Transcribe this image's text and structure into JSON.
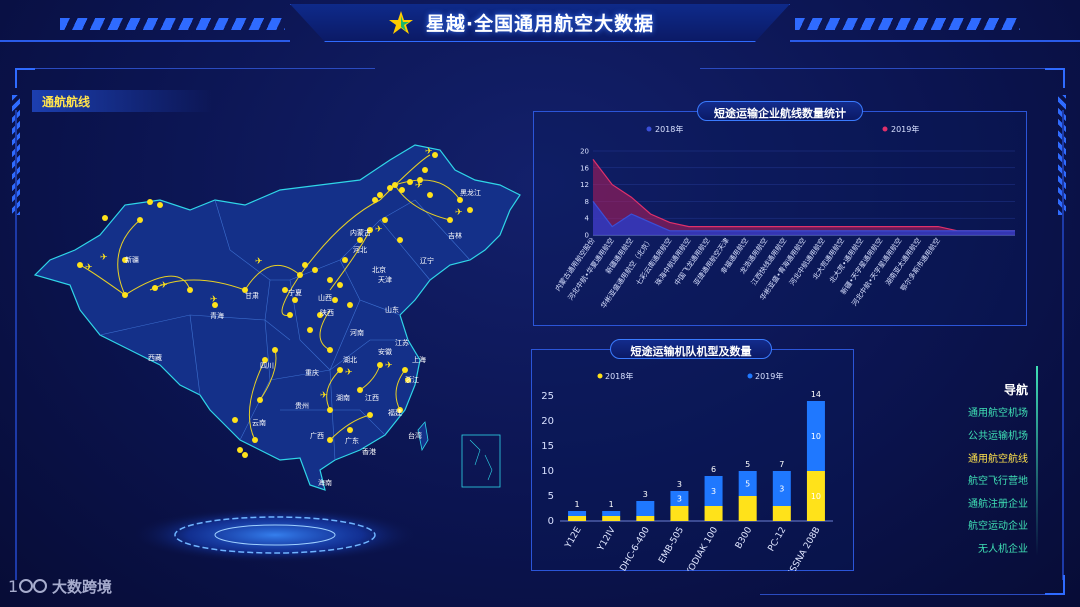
{
  "header": {
    "title": "星越·全国通用航空大数据"
  },
  "map_panel": {
    "title": "通航航线",
    "provinces": [
      "黑龙江",
      "吉林",
      "辽宁",
      "内蒙古",
      "北京",
      "天津",
      "河北",
      "山西",
      "山东",
      "陕西",
      "宁夏",
      "甘肃",
      "青海",
      "新疆",
      "西藏",
      "四川",
      "重庆",
      "贵州",
      "云南",
      "湖北",
      "湖南",
      "河南",
      "安徽",
      "江苏",
      "上海",
      "浙江",
      "江西",
      "福建",
      "广东",
      "广西",
      "香港",
      "台湾",
      "海南"
    ]
  },
  "line_panel": {
    "title": "短途运输企业航线数量统计",
    "chart_data": {
      "type": "area",
      "series": [
        {
          "name": "2018年",
          "color": "#3a4fd8",
          "values": [
            8,
            2,
            5,
            3,
            1,
            1,
            1,
            1,
            1,
            1,
            1,
            1,
            1,
            1,
            1,
            1,
            1,
            1,
            1,
            1,
            1,
            1,
            1
          ]
        },
        {
          "name": "2019年",
          "color": "#e0306a",
          "values": [
            18,
            12,
            9,
            5,
            3,
            2,
            2,
            2,
            2,
            2,
            2,
            2,
            2,
            2,
            2,
            2,
            2,
            2,
            2,
            1,
            1,
            1,
            1
          ]
        }
      ],
      "categories": [
        "内蒙古通用航空股份",
        "河北中航•华夏通用航空",
        "新疆通用航空",
        "华彬亚盛通用航空（北京）",
        "七彩云南通用航空",
        "珠海中航通用航空",
        "中国飞龙通用航空",
        "亚捷通用航空天津",
        "幸福通用航空",
        "龙浩通用航空",
        "江西快线通用航空",
        "华彬亚盛•青海通用航空",
        "河北中航通用航空",
        "北大荒通用航空",
        "北大荒•通用航空",
        "新疆•天宇星通用航空",
        "河北中航•天宇星通用航空",
        "湖南亚太通用航空",
        "鄂尔多斯市通用航空",
        "",
        "",
        "",
        ""
      ],
      "ylim": [
        0,
        20
      ],
      "yticks": [
        0,
        4,
        8,
        12,
        16,
        20
      ],
      "legend_position": "top"
    }
  },
  "fleet_panel": {
    "title": "短途运输机队机型及数量",
    "chart_data": {
      "type": "bar",
      "stacked": true,
      "categories": [
        "Y12E",
        "Y12IV",
        "DHC-6-400",
        "EMB-505",
        "KODIAK 100",
        "B300",
        "PC-12",
        "CESSNA 208B"
      ],
      "series": [
        {
          "name": "2018年",
          "color": "#ffe21a",
          "values": [
            1,
            1,
            1,
            3,
            3,
            5,
            3,
            10
          ]
        },
        {
          "name": "2019年",
          "color": "#1f78ff",
          "values": [
            1,
            1,
            3,
            3,
            6,
            5,
            7,
            14
          ]
        }
      ],
      "ylim": [
        0,
        25
      ],
      "yticks": [
        0,
        5,
        10,
        15,
        20,
        25
      ],
      "legend_position": "top"
    }
  },
  "nav": {
    "title": "导航",
    "items": [
      "通用航空机场",
      "公共运输机场",
      "通用航空航线",
      "航空飞行营地",
      "通航注册企业",
      "航空运动企业",
      "无人机企业"
    ],
    "active_index": 2
  },
  "watermark": "大数跨境"
}
